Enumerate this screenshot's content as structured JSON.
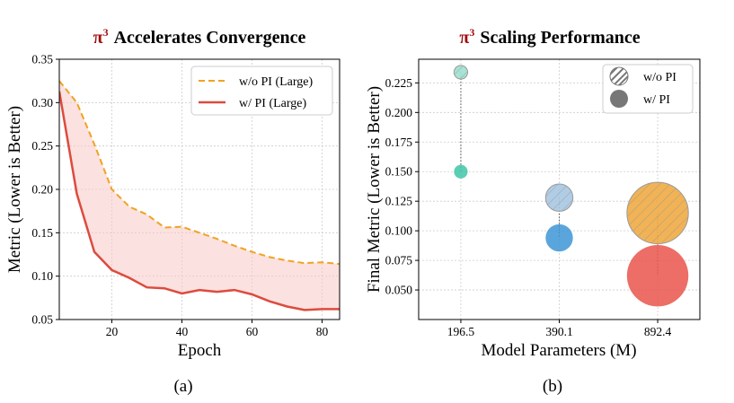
{
  "chart_data": [
    {
      "type": "line",
      "title_symbol": "π",
      "title_sup": "3",
      "title_text": "Accelerates Convergence",
      "xlabel": "Epoch",
      "ylabel": "Metric (Lower is Better)",
      "xlim": [
        5,
        85
      ],
      "ylim": [
        0.05,
        0.35
      ],
      "x_ticks": [
        20,
        40,
        60,
        80
      ],
      "y_ticks": [
        0.05,
        0.1,
        0.15,
        0.2,
        0.25,
        0.3,
        0.35
      ],
      "y_tick_labels": [
        "0.05",
        "0.10",
        "0.15",
        "0.20",
        "0.25",
        "0.30",
        "0.35"
      ],
      "grid": true,
      "shaded_between_series": true,
      "legend_position": "top-right",
      "series": [
        {
          "name": "w/o PI (Large)",
          "style": "dashed",
          "color": "#f0a321",
          "x": [
            5,
            10,
            15,
            20,
            25,
            30,
            35,
            40,
            45,
            50,
            55,
            60,
            65,
            70,
            75,
            80,
            85
          ],
          "y": [
            0.325,
            0.3,
            0.252,
            0.2,
            0.18,
            0.171,
            0.156,
            0.157,
            0.15,
            0.143,
            0.135,
            0.128,
            0.122,
            0.118,
            0.115,
            0.116,
            0.114
          ]
        },
        {
          "name": "w/ PI (Large)",
          "style": "solid",
          "color": "#dc4b3e",
          "x": [
            5,
            10,
            15,
            20,
            25,
            30,
            35,
            40,
            45,
            50,
            55,
            60,
            65,
            70,
            75,
            80,
            85
          ],
          "y": [
            0.313,
            0.195,
            0.128,
            0.107,
            0.098,
            0.087,
            0.086,
            0.08,
            0.084,
            0.082,
            0.084,
            0.079,
            0.071,
            0.065,
            0.061,
            0.062,
            0.062
          ]
        }
      ],
      "fill_color": "#f7c9c5",
      "caption": "(a)"
    },
    {
      "type": "scatter",
      "title_symbol": "π",
      "title_sup": "3",
      "title_text": "Scaling Performance",
      "xlabel": "Model Parameters (M)",
      "ylabel": "Final Metric (Lower is Better)",
      "categories": [
        "196.5",
        "390.1",
        "892.4"
      ],
      "ylim": [
        0.025,
        0.245
      ],
      "y_ticks": [
        0.05,
        0.075,
        0.1,
        0.125,
        0.15,
        0.175,
        0.2,
        0.225
      ],
      "y_tick_labels": [
        "0.050",
        "0.075",
        "0.100",
        "0.125",
        "0.150",
        "0.175",
        "0.200",
        "0.225"
      ],
      "grid": true,
      "legend_position": "top-right",
      "series": [
        {
          "name": "w/o PI",
          "style": "hatched",
          "points": [
            {
              "category": "196.5",
              "y": 0.234,
              "color": "#9fe0d0"
            },
            {
              "category": "390.1",
              "y": 0.128,
              "color": "#a9c8e3"
            },
            {
              "category": "892.4",
              "y": 0.115,
              "color": "#f0ab42"
            }
          ]
        },
        {
          "name": "w/ PI",
          "style": "solid",
          "points": [
            {
              "category": "196.5",
              "y": 0.15,
              "color": "#3ec6a6"
            },
            {
              "category": "390.1",
              "y": 0.094,
              "color": "#3d97d6"
            },
            {
              "category": "892.4",
              "y": 0.062,
              "color": "#e9554b"
            }
          ]
        }
      ],
      "bubble_size_by_category": {
        "196.5": 1,
        "390.1": 2,
        "892.4": 4.5
      },
      "caption": "(b)"
    }
  ]
}
